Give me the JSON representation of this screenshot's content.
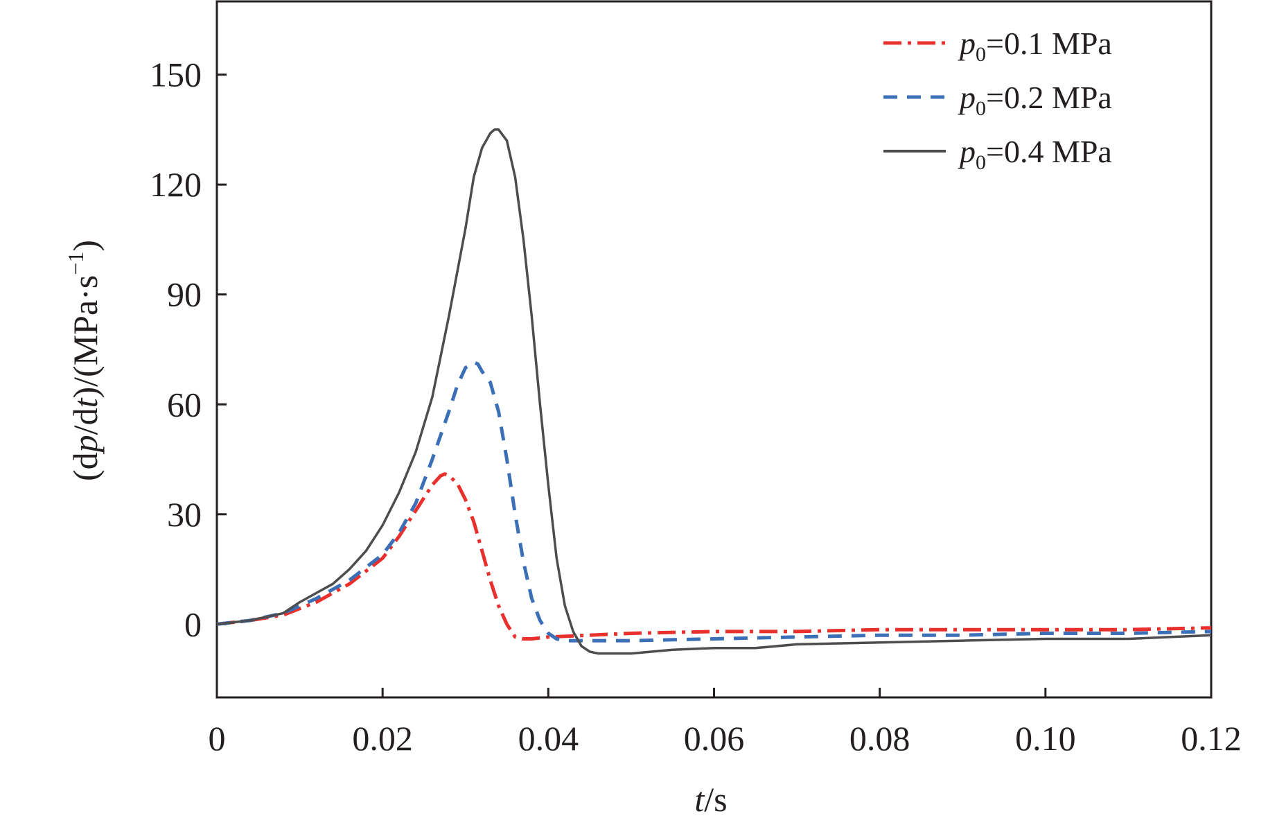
{
  "chart_data": {
    "type": "line",
    "xlabel": {
      "var": "t",
      "rest": "/s"
    },
    "ylabel": {
      "prefix": "(d",
      "var1": "p",
      "mid": "/d",
      "var2": "t",
      "unit": ")/(MPa·s",
      "sup": "−1",
      "suffix": ")"
    },
    "xlim": [
      0,
      0.12
    ],
    "ylim": [
      -20,
      170
    ],
    "xticks": [
      0,
      0.02,
      0.04,
      0.06,
      0.08,
      0.1,
      0.12
    ],
    "xtick_labels": [
      "0",
      "0.02",
      "0.04",
      "0.06",
      "0.08",
      "0.10",
      "0.12"
    ],
    "yticks": [
      0,
      30,
      60,
      90,
      120,
      150
    ],
    "ytick_labels": [
      "0",
      "30",
      "60",
      "90",
      "120",
      "150"
    ],
    "grid": false,
    "legend_position": "top-right",
    "series": [
      {
        "name": {
          "var": "p",
          "sub": "0",
          "rest": "=0.1 MPa"
        },
        "color": "#e8312d",
        "dash": "dash-dot",
        "x": [
          0,
          0.004,
          0.008,
          0.012,
          0.016,
          0.02,
          0.022,
          0.024,
          0.026,
          0.027,
          0.0275,
          0.028,
          0.029,
          0.03,
          0.031,
          0.032,
          0.033,
          0.034,
          0.035,
          0.036,
          0.037,
          0.038,
          0.04,
          0.045,
          0.05,
          0.06,
          0.07,
          0.08,
          0.09,
          0.1,
          0.11,
          0.12
        ],
        "y": [
          0,
          1,
          2.5,
          6,
          11,
          18,
          24,
          31,
          38,
          40.5,
          41,
          40.5,
          38.5,
          34,
          28,
          20,
          12,
          5,
          0,
          -3.5,
          -4,
          -4,
          -3.5,
          -3,
          -2.5,
          -2,
          -2,
          -1.5,
          -1.5,
          -1.5,
          -1.5,
          -1
        ]
      },
      {
        "name": {
          "var": "p",
          "sub": "0",
          "rest": "=0.2 MPa"
        },
        "color": "#3b6fb6",
        "dash": "dashed",
        "x": [
          0,
          0.004,
          0.008,
          0.012,
          0.016,
          0.02,
          0.022,
          0.024,
          0.026,
          0.028,
          0.029,
          0.03,
          0.031,
          0.0315,
          0.032,
          0.033,
          0.034,
          0.035,
          0.036,
          0.037,
          0.038,
          0.039,
          0.04,
          0.041,
          0.042,
          0.044,
          0.05,
          0.06,
          0.07,
          0.08,
          0.09,
          0.1,
          0.11,
          0.12
        ],
        "y": [
          0,
          1,
          3,
          7,
          12,
          19,
          25,
          33,
          45,
          58,
          65,
          70,
          71.5,
          71,
          69,
          66,
          58,
          45,
          30,
          17,
          7,
          1,
          -2.5,
          -4,
          -4.5,
          -4.5,
          -4.5,
          -4,
          -3.5,
          -3,
          -3,
          -2.5,
          -2.5,
          -2
        ]
      },
      {
        "name": {
          "var": "p",
          "sub": "0",
          "rest": "=0.4 MPa"
        },
        "color": "#4d4d4f",
        "dash": "solid",
        "x": [
          0,
          0.004,
          0.008,
          0.01,
          0.012,
          0.014,
          0.016,
          0.018,
          0.02,
          0.022,
          0.024,
          0.026,
          0.028,
          0.03,
          0.031,
          0.032,
          0.033,
          0.0335,
          0.034,
          0.035,
          0.036,
          0.037,
          0.038,
          0.039,
          0.04,
          0.041,
          0.042,
          0.043,
          0.044,
          0.045,
          0.046,
          0.05,
          0.055,
          0.06,
          0.065,
          0.07,
          0.08,
          0.09,
          0.1,
          0.11,
          0.12
        ],
        "y": [
          0,
          1,
          3,
          6,
          8.5,
          11,
          15,
          20,
          27,
          36,
          47,
          62,
          84,
          108,
          122,
          130,
          134,
          135,
          135,
          132,
          122,
          105,
          84,
          60,
          38,
          18,
          5,
          -2,
          -6,
          -7.5,
          -8,
          -8,
          -7,
          -6.5,
          -6.5,
          -5.5,
          -5,
          -4.5,
          -4,
          -4,
          -3
        ]
      }
    ]
  }
}
